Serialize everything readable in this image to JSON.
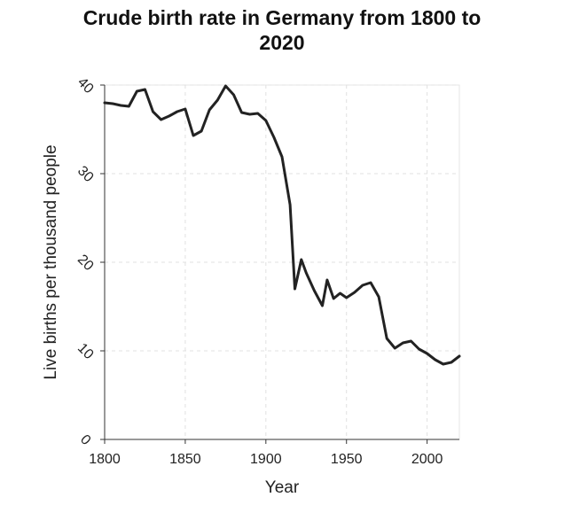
{
  "chart_data": {
    "type": "line",
    "title": "Crude birth rate in Germany from 1800 to 2020",
    "xlabel": "Year",
    "ylabel": "Live births per thousand people",
    "xlim": [
      1800,
      2020
    ],
    "ylim": [
      0,
      40
    ],
    "x_ticks": [
      "1800",
      "1850",
      "1900",
      "1950",
      "2000"
    ],
    "y_ticks": [
      "0",
      "10",
      "20",
      "30",
      "40"
    ],
    "grid": true,
    "line_color": "#222222",
    "series": [
      {
        "x": [
          1800,
          1805,
          1810,
          1815,
          1820,
          1825,
          1830,
          1835,
          1840,
          1845,
          1850,
          1855,
          1860,
          1865,
          1870,
          1875,
          1880,
          1885,
          1890,
          1895,
          1900,
          1905,
          1910,
          1915,
          1918,
          1922,
          1925,
          1930,
          1935,
          1938,
          1942,
          1946,
          1950,
          1955,
          1960,
          1965,
          1970,
          1975,
          1980,
          1985,
          1990,
          1995,
          2000,
          2005,
          2010,
          2015,
          2020
        ],
        "y": [
          38.0,
          37.9,
          37.7,
          37.6,
          39.3,
          39.5,
          37.0,
          36.1,
          36.5,
          37.0,
          37.3,
          34.3,
          34.8,
          37.2,
          38.3,
          39.9,
          38.9,
          36.9,
          36.7,
          36.8,
          36.0,
          34.1,
          31.9,
          26.5,
          17.0,
          20.3,
          18.8,
          16.8,
          15.1,
          18.0,
          15.9,
          16.5,
          16.0,
          16.6,
          17.4,
          17.7,
          16.1,
          11.4,
          10.3,
          10.9,
          11.1,
          10.2,
          9.7,
          9.0,
          8.5,
          8.7,
          9.4
        ]
      }
    ]
  }
}
